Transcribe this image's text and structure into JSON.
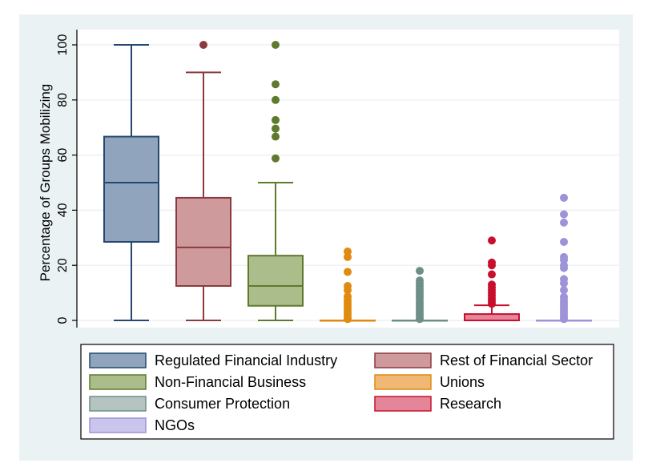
{
  "chart_data": {
    "type": "box",
    "title": "",
    "xlabel": "",
    "ylabel": "Percentage of Groups Mobilizing",
    "ylim": [
      0,
      100
    ],
    "yticks": [
      "0",
      "20",
      "40",
      "60",
      "80",
      "100"
    ],
    "grid": true,
    "legend_position": "bottom",
    "series": [
      {
        "name": "Regulated Financial Industry",
        "color": "#90a5bd",
        "stroke": "#24486f",
        "min": 0,
        "q1": 28.5,
        "median": 50,
        "q3": 66.7,
        "max": 100,
        "outliers": []
      },
      {
        "name": "Rest of Financial Sector",
        "color": "#cf9a9b",
        "stroke": "#8c3a3d",
        "min": 0,
        "q1": 12.5,
        "median": 26.5,
        "q3": 44.5,
        "max": 90,
        "outliers": [
          100
        ]
      },
      {
        "name": "Non-Financial Business",
        "color": "#aabd8a",
        "stroke": "#5e7a2e",
        "min": 0,
        "q1": 5.3,
        "median": 12.5,
        "q3": 23.5,
        "max": 50,
        "outliers": [
          58.8,
          66.7,
          69.6,
          72.7,
          80,
          85.7,
          100
        ]
      },
      {
        "name": "Unions",
        "color": "#f0b775",
        "stroke": "#e08a10",
        "min": 0,
        "q1": 0,
        "median": 0,
        "q3": 0,
        "max": 0,
        "outliers": [
          0.5,
          1.5,
          2.5,
          3.5,
          4.5,
          5.5,
          6.5,
          7.5,
          8.7,
          11,
          12.5,
          17.6,
          23,
          25
        ]
      },
      {
        "name": "Consumer Protection",
        "color": "#b4c4c0",
        "stroke": "#6e8f88",
        "min": 0,
        "q1": 0,
        "median": 0,
        "q3": 0,
        "max": 0,
        "outliers": [
          0.5,
          1.5,
          2.5,
          3.5,
          4.5,
          5.5,
          6.5,
          7.5,
          8.5,
          9.5,
          10.5,
          11.5,
          12.5,
          13.5,
          14.5,
          18
        ]
      },
      {
        "name": "Research",
        "color": "#e3869a",
        "stroke": "#c8102e",
        "min": 0,
        "q1": 0,
        "median": 0,
        "q3": 2.3,
        "max": 5.5,
        "outliers": [
          6,
          7,
          8,
          9,
          10,
          11,
          12,
          13,
          16.7,
          20,
          21,
          29
        ]
      },
      {
        "name": "NGOs",
        "color": "#c9c5ec",
        "stroke": "#9d93d8",
        "min": 0,
        "q1": 0,
        "median": 0,
        "q3": 0,
        "max": 0,
        "outliers": [
          0.5,
          1.5,
          2.5,
          3.5,
          4.5,
          5.5,
          6.5,
          7.5,
          8.5,
          11,
          13.5,
          15,
          19,
          20,
          22,
          23,
          28.5,
          35.5,
          38.5,
          44.5
        ]
      }
    ]
  }
}
